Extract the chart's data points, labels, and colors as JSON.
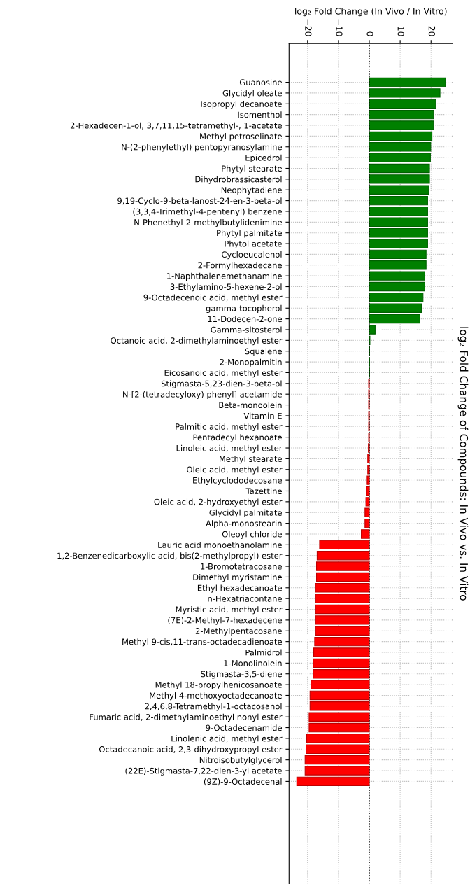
{
  "chart_data": {
    "type": "bar",
    "orientation": "horizontal",
    "xlabel": "log₂ Fold Change (In Vivo / In Vitro)",
    "ylabel": "log₂ Fold Change of Compounds: In Vivo vs. In Vitro",
    "categories": [
      "Guanosine",
      "Glycidyl oleate",
      "Isopropyl decanoate",
      "Isomenthol",
      "2-Hexadecen-1-ol, 3,7,11,15-tetramethyl-, 1-acetate",
      "Methyl petroselinate",
      "N-(2-phenylethyl) pentopyranosylamine",
      "Epicedrol",
      "Phytyl stearate",
      "Dihydrobrassicasterol",
      "Neophytadiene",
      "9,19-Cyclo-9-beta-lanost-24-en-3-beta-ol",
      "(3,3,4-Trimethyl-4-pentenyl) benzene",
      "N-Phenethyl-2-methylbutylidenimine",
      "Phytyl palmitate",
      "Phytol acetate",
      "Cycloeucalenol",
      "2-Formylhexadecane",
      "1-Naphthalenemethanamine",
      "3-Ethylamino-5-hexene-2-ol",
      "9-Octadecenoic acid, methyl ester",
      "gamma-tocopherol",
      "11-Dodecen-2-one",
      "Gamma-sitosterol",
      "Octanoic acid, 2-dimethylaminoethyl ester",
      "Squalene",
      "2-Monopalmitin",
      "Eicosanoic acid, methyl ester",
      "Stigmasta-5,23-dien-3-beta-ol",
      "N-[2-(tetradecyloxy) phenyl] acetamide",
      "Beta-monoolein",
      "Vitamin E",
      "Palmitic acid, methyl ester",
      "Pentadecyl hexanoate",
      "Linoleic acid, methyl ester",
      "Methyl stearate",
      "Oleic acid, methyl ester",
      "Ethylcyclododecosane",
      "Tazettine",
      "Oleic acid, 2-hydroxyethyl ester",
      "Glycidyl palmitate",
      "Alpha-monostearin",
      "Oleoyl chloride",
      "Lauric acid monoethanolamine",
      "1,2-Benzenedicarboxylic acid, bis(2-methylpropyl) ester",
      "1-Bromotetracosane",
      "Dimethyl myristamine",
      "Ethyl hexadecanoate",
      "n-Hexatriacontane",
      "Myristic acid, methyl ester",
      "(7E)-2-Methyl-7-hexadecene",
      "2-Methylpentacosane",
      "Methyl 9-cis,11-trans-octadecadienoate",
      "Palmidrol",
      "1-Monolinolein",
      "Stigmasta-3,5-diene",
      "Methyl 18-propylhenicosanoate",
      "Methyl 4-methoxyoctadecanoate",
      "2,4,6,8-Tetramethyl-1-octacosanol",
      "Fumaric acid, 2-dimethylaminoethyl nonyl ester",
      "9-Octadecenamide",
      "Linolenic acid, methyl ester",
      "Octadecanoic acid, 2,3-dihydroxypropyl ester",
      "Nitroisobutylglycerol",
      "(22E)-Stigmasta-7,22-dien-3-yl acetate",
      "(9Z)-9-Octadecenal"
    ],
    "values": [
      24.7,
      22.9,
      21.5,
      20.8,
      20.8,
      20.3,
      19.9,
      19.8,
      19.5,
      19.5,
      19.2,
      18.9,
      18.9,
      18.9,
      18.9,
      18.9,
      18.4,
      18.4,
      18.0,
      18.0,
      17.4,
      16.9,
      16.4,
      1.9,
      0.2,
      0.1,
      0.1,
      0.1,
      -0.2,
      -0.2,
      -0.2,
      -0.2,
      -0.2,
      -0.2,
      -0.3,
      -0.5,
      -0.5,
      -0.7,
      -0.9,
      -1.1,
      -1.4,
      -1.4,
      -2.6,
      -16.1,
      -16.9,
      -17.1,
      -17.1,
      -17.4,
      -17.4,
      -17.4,
      -17.4,
      -17.4,
      -17.7,
      -18.0,
      -18.2,
      -18.2,
      -18.9,
      -19.2,
      -19.2,
      -19.5,
      -19.5,
      -20.3,
      -20.5,
      -20.8,
      -20.8,
      -23.5
    ],
    "colors": [
      "#008000",
      "#008000",
      "#008000",
      "#008000",
      "#008000",
      "#008000",
      "#008000",
      "#008000",
      "#008000",
      "#008000",
      "#008000",
      "#008000",
      "#008000",
      "#008000",
      "#008000",
      "#008000",
      "#008000",
      "#008000",
      "#008000",
      "#008000",
      "#008000",
      "#008000",
      "#008000",
      "#008000",
      "#008000",
      "#008000",
      "#008000",
      "#008000",
      "#ff0000",
      "#ff0000",
      "#ff0000",
      "#ff0000",
      "#ff0000",
      "#ff0000",
      "#ff0000",
      "#ff0000",
      "#ff0000",
      "#ff0000",
      "#ff0000",
      "#ff0000",
      "#ff0000",
      "#ff0000",
      "#ff0000",
      "#ff0000",
      "#ff0000",
      "#ff0000",
      "#ff0000",
      "#ff0000",
      "#ff0000",
      "#ff0000",
      "#ff0000",
      "#ff0000",
      "#ff0000",
      "#ff0000",
      "#ff0000",
      "#ff0000",
      "#ff0000",
      "#ff0000",
      "#ff0000",
      "#ff0000",
      "#ff0000",
      "#ff0000",
      "#ff0000",
      "#ff0000",
      "#ff0000",
      "#ff0000"
    ],
    "xlim": [
      -26,
      27
    ],
    "xticks": [
      {
        "value": -20,
        "label": "−20"
      },
      {
        "value": -10,
        "label": "−10"
      },
      0,
      10,
      20
    ],
    "grid": true,
    "ref_lines": [
      {
        "axis": "x",
        "value": 0,
        "color": "#000000",
        "line_style": "dotted"
      }
    ]
  }
}
